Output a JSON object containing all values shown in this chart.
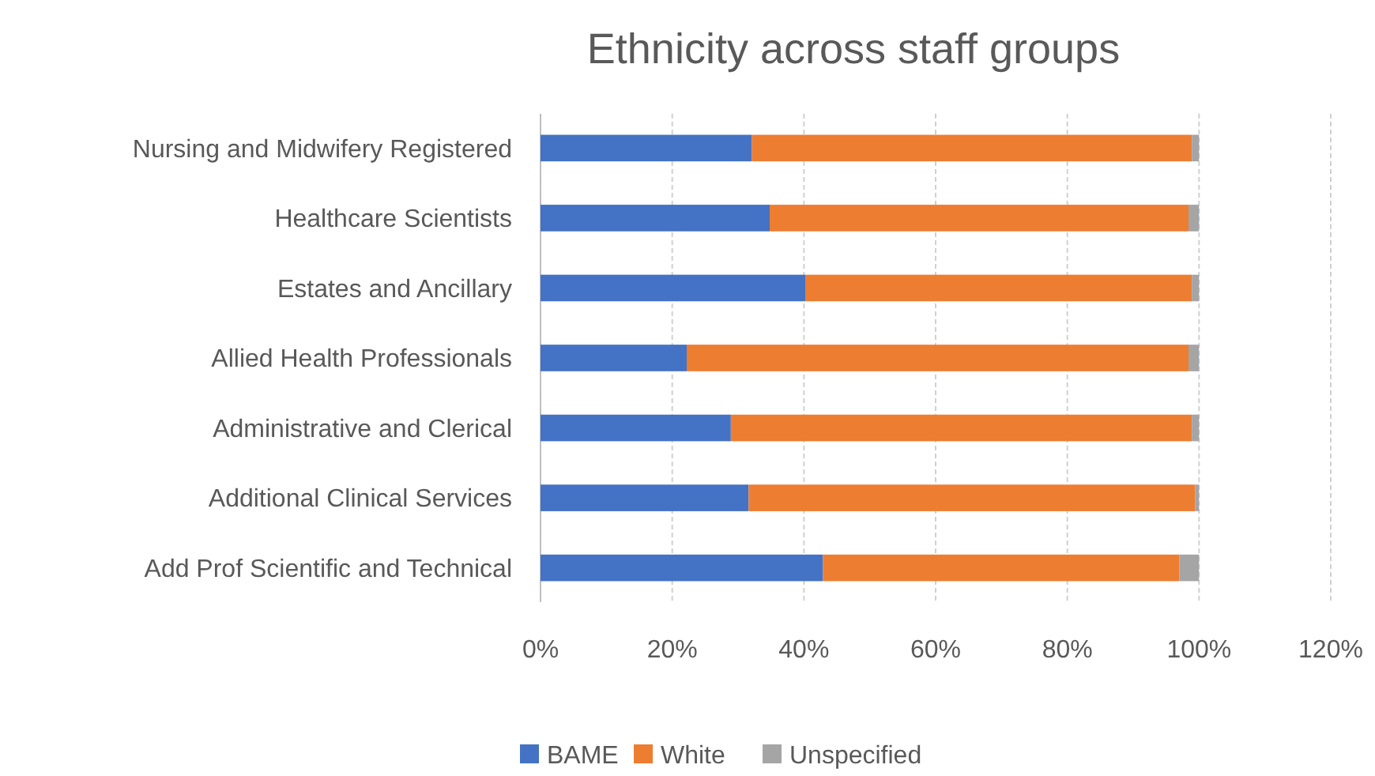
{
  "chart_data": {
    "type": "bar",
    "orientation": "horizontal",
    "stacked": true,
    "title": "Ethnicity across staff groups",
    "categories": [
      "Nursing and Midwifery Registered",
      "Healthcare Scientists",
      "Estates and Ancillary",
      "Allied Health Professionals",
      "Administrative and Clerical",
      "Additional Clinical Services",
      "Add Prof Scientific and Technical"
    ],
    "series": [
      {
        "name": "BAME",
        "color": "#4472c4",
        "values": [
          32.1,
          34.8,
          40.2,
          22.2,
          28.9,
          31.6,
          42.9
        ]
      },
      {
        "name": "White",
        "color": "#ed7d31",
        "values": [
          66.8,
          63.6,
          58.7,
          76.2,
          70.0,
          67.8,
          54.1
        ]
      },
      {
        "name": "Unspecified",
        "color": "#a5a5a5",
        "values": [
          1.1,
          1.6,
          1.1,
          1.6,
          1.1,
          0.6,
          3.0
        ]
      }
    ],
    "xlim": [
      0,
      120
    ],
    "xticks": [
      {
        "value": 0,
        "label": "0%"
      },
      {
        "value": 20,
        "label": "20%"
      },
      {
        "value": 40,
        "label": "40%"
      },
      {
        "value": 60,
        "label": "60%"
      },
      {
        "value": 80,
        "label": "80%"
      },
      {
        "value": 100,
        "label": "100%"
      },
      {
        "value": 120,
        "label": "120%"
      }
    ],
    "grid": "x",
    "legend": "bottom"
  }
}
